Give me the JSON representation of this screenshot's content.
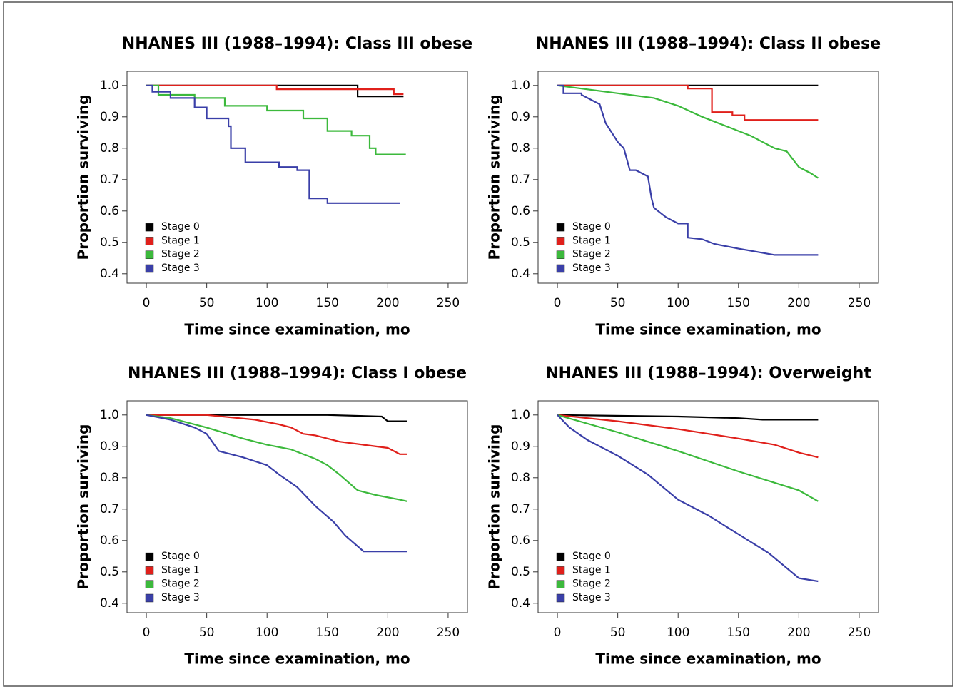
{
  "chart_data": [
    {
      "type": "line",
      "title": "NHANES III (1988–1994): Class III obese",
      "x_label": "Time since examination, mo",
      "y_label": "Proportion surviving",
      "xlim": [
        -16,
        266
      ],
      "ylim": [
        0.37,
        1.045
      ],
      "xticks": [
        0,
        50,
        100,
        150,
        200,
        250
      ],
      "yticks": [
        0.4,
        0.5,
        0.6,
        0.7,
        0.8,
        0.9,
        {
          "value": 1,
          "label": "1.0"
        }
      ],
      "legend": "bottom-left",
      "series": [
        {
          "name": "Stage 0",
          "color": "#000000",
          "x": [
            0,
            175,
            175,
            213
          ],
          "values": [
            1,
            1,
            0.965,
            0.965
          ]
        },
        {
          "name": "Stage 1",
          "color": "#e0201b",
          "x": [
            0,
            108,
            108,
            205,
            205,
            213
          ],
          "values": [
            1,
            1,
            0.988,
            0.988,
            0.972,
            0.972
          ]
        },
        {
          "name": "Stage 2",
          "color": "#3cb93c",
          "x": [
            0,
            10,
            10,
            40,
            40,
            65,
            65,
            100,
            100,
            130,
            130,
            150,
            150,
            170,
            170,
            185,
            185,
            190,
            190,
            215
          ],
          "values": [
            1,
            1,
            0.97,
            0.97,
            0.96,
            0.96,
            0.935,
            0.935,
            0.92,
            0.92,
            0.895,
            0.895,
            0.855,
            0.855,
            0.84,
            0.84,
            0.8,
            0.8,
            0.78,
            0.78
          ]
        },
        {
          "name": "Stage 3",
          "color": "#3a3fa8",
          "x": [
            0,
            5,
            5,
            20,
            20,
            40,
            40,
            50,
            50,
            68,
            68,
            70,
            70,
            82,
            82,
            110,
            110,
            125,
            125,
            135,
            135,
            150,
            150,
            210
          ],
          "values": [
            1,
            1,
            0.98,
            0.98,
            0.96,
            0.96,
            0.93,
            0.93,
            0.895,
            0.895,
            0.87,
            0.87,
            0.8,
            0.8,
            0.755,
            0.755,
            0.74,
            0.74,
            0.73,
            0.73,
            0.64,
            0.64,
            0.625,
            0.625
          ]
        }
      ]
    },
    {
      "type": "line",
      "title": "NHANES III (1988–1994): Class II obese",
      "x_label": "Time since examination, mo",
      "y_label": "Proportion surviving",
      "xlim": [
        -16,
        266
      ],
      "ylim": [
        0.37,
        1.045
      ],
      "xticks": [
        0,
        50,
        100,
        150,
        200,
        250
      ],
      "yticks": [
        0.4,
        0.5,
        0.6,
        0.7,
        0.8,
        0.9,
        {
          "value": 1,
          "label": "1.0"
        }
      ],
      "legend": "bottom-left",
      "series": [
        {
          "name": "Stage 0",
          "color": "#000000",
          "x": [
            0,
            216
          ],
          "values": [
            1,
            1
          ]
        },
        {
          "name": "Stage 1",
          "color": "#e0201b",
          "x": [
            0,
            108,
            108,
            128,
            128,
            145,
            145,
            155,
            155,
            216
          ],
          "values": [
            1,
            1,
            0.99,
            0.99,
            0.915,
            0.915,
            0.905,
            0.905,
            0.89,
            0.89
          ]
        },
        {
          "name": "Stage 2",
          "color": "#3cb93c",
          "x": [
            0,
            20,
            50,
            80,
            100,
            120,
            140,
            160,
            180,
            190,
            200,
            210,
            216
          ],
          "values": [
            1,
            0.99,
            0.975,
            0.96,
            0.935,
            0.9,
            0.87,
            0.84,
            0.8,
            0.79,
            0.74,
            0.72,
            0.705
          ]
        },
        {
          "name": "Stage 3",
          "color": "#3a3fa8",
          "x": [
            0,
            5,
            5,
            20,
            20,
            35,
            40,
            45,
            50,
            55,
            60,
            65,
            75,
            78,
            80,
            90,
            100,
            108,
            108,
            120,
            130,
            150,
            180,
            216
          ],
          "values": [
            1,
            1,
            0.975,
            0.975,
            0.97,
            0.94,
            0.88,
            0.85,
            0.82,
            0.8,
            0.73,
            0.73,
            0.71,
            0.64,
            0.61,
            0.58,
            0.56,
            0.56,
            0.515,
            0.51,
            0.495,
            0.48,
            0.46,
            0.46
          ]
        }
      ]
    },
    {
      "type": "line",
      "title": "NHANES III (1988–1994): Class I obese",
      "x_label": "Time since examination, mo",
      "y_label": "Proportion surviving",
      "xlim": [
        -16,
        266
      ],
      "ylim": [
        0.37,
        1.045
      ],
      "xticks": [
        0,
        50,
        100,
        150,
        200,
        250
      ],
      "yticks": [
        0.4,
        0.5,
        0.6,
        0.7,
        0.8,
        0.9,
        {
          "value": 1,
          "label": "1.0"
        }
      ],
      "legend": "bottom-left",
      "series": [
        {
          "name": "Stage 0",
          "color": "#000000",
          "x": [
            0,
            150,
            195,
            200,
            216
          ],
          "values": [
            1,
            1,
            0.995,
            0.98,
            0.98
          ]
        },
        {
          "name": "Stage 1",
          "color": "#e0201b",
          "x": [
            0,
            50,
            90,
            110,
            120,
            130,
            140,
            160,
            180,
            200,
            210,
            216
          ],
          "values": [
            1,
            1,
            0.985,
            0.97,
            0.96,
            0.94,
            0.935,
            0.915,
            0.905,
            0.895,
            0.875,
            0.875
          ]
        },
        {
          "name": "Stage 2",
          "color": "#3cb93c",
          "x": [
            0,
            20,
            50,
            80,
            100,
            120,
            140,
            150,
            160,
            175,
            190,
            210,
            216
          ],
          "values": [
            1,
            0.99,
            0.96,
            0.925,
            0.905,
            0.89,
            0.86,
            0.84,
            0.81,
            0.76,
            0.745,
            0.73,
            0.725
          ]
        },
        {
          "name": "Stage 3",
          "color": "#3a3fa8",
          "x": [
            0,
            20,
            40,
            50,
            60,
            80,
            100,
            110,
            125,
            135,
            140,
            155,
            165,
            180,
            216
          ],
          "values": [
            1,
            0.985,
            0.96,
            0.94,
            0.885,
            0.865,
            0.84,
            0.81,
            0.77,
            0.73,
            0.71,
            0.66,
            0.615,
            0.565,
            0.565
          ]
        }
      ]
    },
    {
      "type": "line",
      "title": "NHANES III (1988–1994): Overweight",
      "x_label": "Time since examination, mo",
      "y_label": "Proportion surviving",
      "xlim": [
        -16,
        266
      ],
      "ylim": [
        0.37,
        1.045
      ],
      "xticks": [
        0,
        50,
        100,
        150,
        200,
        250
      ],
      "yticks": [
        0.4,
        0.5,
        0.6,
        0.7,
        0.8,
        0.9,
        {
          "value": 1,
          "label": "1.0"
        }
      ],
      "legend": "bottom-left",
      "series": [
        {
          "name": "Stage 0",
          "color": "#000000",
          "x": [
            0,
            100,
            150,
            170,
            216
          ],
          "values": [
            1,
            0.995,
            0.99,
            0.985,
            0.985
          ]
        },
        {
          "name": "Stage 1",
          "color": "#e0201b",
          "x": [
            0,
            50,
            100,
            150,
            180,
            200,
            216
          ],
          "values": [
            1,
            0.98,
            0.955,
            0.925,
            0.905,
            0.88,
            0.865
          ]
        },
        {
          "name": "Stage 2",
          "color": "#3cb93c",
          "x": [
            0,
            50,
            100,
            150,
            200,
            216
          ],
          "values": [
            1,
            0.945,
            0.885,
            0.82,
            0.76,
            0.725
          ]
        },
        {
          "name": "Stage 3",
          "color": "#3a3fa8",
          "x": [
            0,
            10,
            25,
            50,
            75,
            100,
            125,
            150,
            175,
            200,
            216
          ],
          "values": [
            1,
            0.96,
            0.92,
            0.87,
            0.81,
            0.73,
            0.68,
            0.62,
            0.56,
            0.48,
            0.47
          ]
        }
      ]
    }
  ]
}
